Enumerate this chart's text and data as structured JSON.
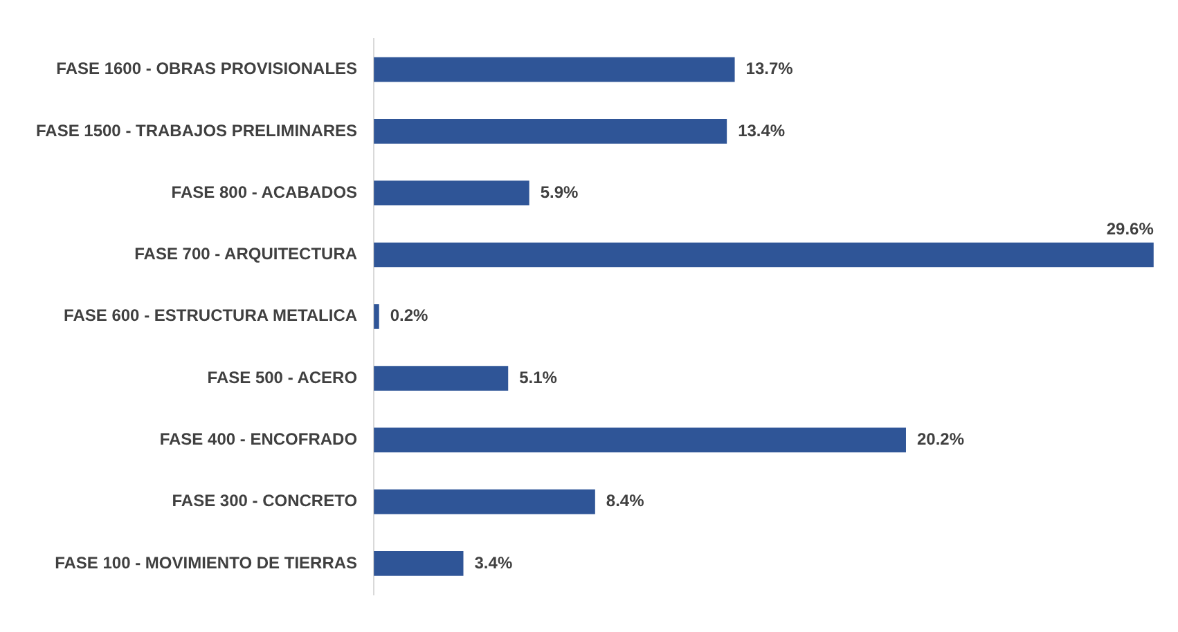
{
  "chart_data": {
    "type": "bar",
    "orientation": "horizontal",
    "categories": [
      "FASE 1600 - OBRAS PROVISIONALES",
      "FASE 1500 - TRABAJOS PRELIMINARES",
      "FASE 800 - ACABADOS",
      "FASE 700 - ARQUITECTURA",
      "FASE 600 - ESTRUCTURA METALICA",
      "FASE 500 - ACERO",
      "FASE 400 - ENCOFRADO",
      "FASE 300 - CONCRETO",
      "FASE 100 - MOVIMIENTO DE TIERRAS"
    ],
    "values": [
      13.7,
      13.4,
      5.9,
      29.6,
      0.2,
      5.1,
      20.2,
      8.4,
      3.4
    ],
    "value_labels": [
      "13.7%",
      "13.4%",
      "5.9%",
      "29.6%",
      "0.2%",
      "5.1%",
      "20.2%",
      "8.4%",
      "3.4%"
    ],
    "color": "#2f5597",
    "grid": false,
    "legend": false,
    "tick_labels": "y"
  }
}
